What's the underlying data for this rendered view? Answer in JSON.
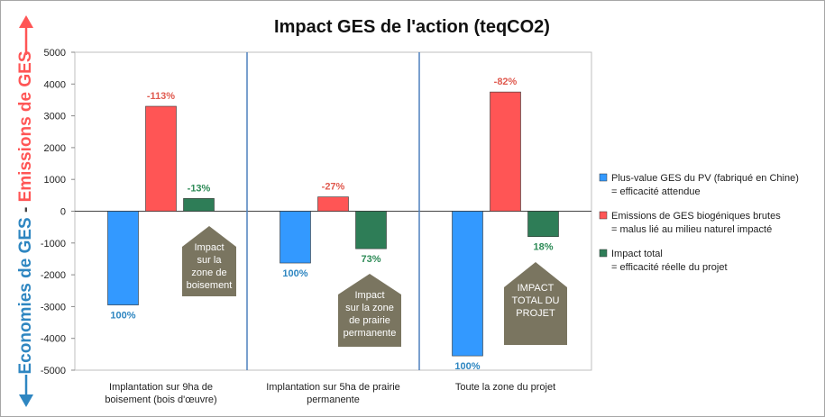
{
  "chart_data": {
    "type": "bar",
    "title": "Impact GES de l'action (teqCO2)",
    "ylim": [
      -5000,
      5000
    ],
    "yticks": [
      -5000,
      -4000,
      -3000,
      -2000,
      -1000,
      0,
      1000,
      2000,
      3000,
      4000,
      5000
    ],
    "categories": [
      [
        "Implantation sur 9ha de",
        "boisement (bois d'œuvre)"
      ],
      [
        "Implantation sur 5ha de prairie",
        "permanente"
      ],
      [
        "Toute la zone du projet"
      ]
    ],
    "series": [
      {
        "name": "Plus-value GES du PV (fabriqué en Chine)",
        "name2": "= efficacité attendue",
        "color": "#3399ff",
        "values": [
          -2950,
          -1630,
          -4550
        ],
        "labels": [
          "100%",
          "100%",
          "100%"
        ],
        "labelColor": "#2e86c1"
      },
      {
        "name": "Emissions de GES biogéniques brutes",
        "name2": "= malus lié au milieu naturel impacté",
        "color": "#ff5555",
        "values": [
          3300,
          450,
          3750
        ],
        "labels": [
          "-113%",
          "-27%",
          "-82%"
        ],
        "labelColor": "#e05a4f"
      },
      {
        "name": "Impact total",
        "name2": "= efficacité réelle du projet",
        "color": "#2e7d57",
        "values": [
          400,
          -1180,
          -800
        ],
        "labels": [
          "-13%",
          "73%",
          "18%"
        ],
        "labelColor": "#2e8b57"
      }
    ],
    "annotations": [
      [
        "Impact",
        "sur la",
        "zone de",
        "boisement"
      ],
      [
        "Impact",
        "sur la zone",
        "de prairie",
        "permanente"
      ],
      [
        "IMPACT",
        "TOTAL DU",
        "PROJET"
      ]
    ],
    "side_labels": {
      "top": "Emissions de GES",
      "separator": "-",
      "bottom": "Economies de GES"
    }
  }
}
